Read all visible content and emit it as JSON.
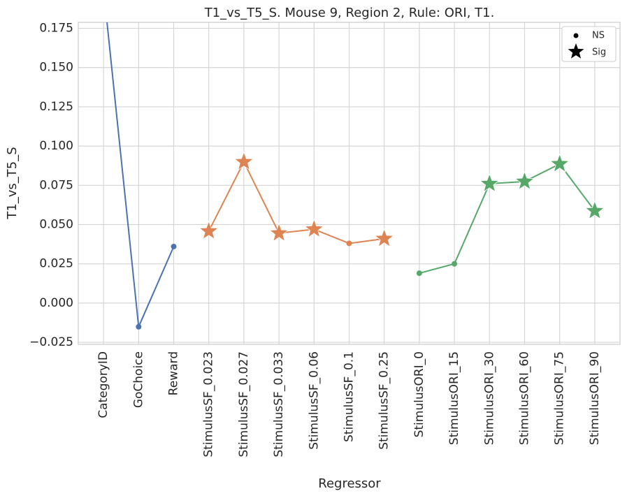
{
  "chart_data": {
    "type": "line",
    "title": "T1_vs_T5_S. Mouse 9, Region 2, Rule: ORI, T1.",
    "x_label": "Regressor",
    "y_label": "T1_vs_T5_S",
    "categories": [
      "CategoryID",
      "GoChoice",
      "Reward",
      "StimulusSF_0.023",
      "StimulusSF_0.027",
      "StimulusSF_0.033",
      "StimulusSF_0.06",
      "StimulusSF_0.1",
      "StimulusSF_0.25",
      "StimulusORI_0",
      "StimulusORI_15",
      "StimulusORI_30",
      "StimulusORI_60",
      "StimulusORI_75",
      "StimulusORI_90"
    ],
    "series": [
      {
        "color": "#4c72b0",
        "values": [
          0.2,
          -0.0151,
          0.036,
          null,
          null,
          null,
          null,
          null,
          null,
          null,
          null,
          null,
          null,
          null,
          null
        ],
        "significant": [
          false,
          false,
          false,
          null,
          null,
          null,
          null,
          null,
          null,
          null,
          null,
          null,
          null,
          null,
          null
        ]
      },
      {
        "color": "#dd8452",
        "values": [
          null,
          null,
          null,
          0.0458,
          0.0899,
          0.0445,
          0.047,
          0.038,
          0.041,
          null,
          null,
          null,
          null,
          null,
          null
        ],
        "significant": [
          null,
          null,
          null,
          true,
          true,
          true,
          true,
          false,
          true,
          null,
          null,
          null,
          null,
          null,
          null
        ]
      },
      {
        "color": "#55a868",
        "values": [
          null,
          null,
          null,
          null,
          null,
          null,
          null,
          null,
          null,
          0.019,
          0.025,
          0.076,
          0.0774,
          0.0886,
          0.0587
        ],
        "significant": [
          null,
          null,
          null,
          null,
          null,
          null,
          null,
          null,
          null,
          false,
          false,
          true,
          true,
          true,
          true
        ]
      }
    ],
    "legend": {
      "entries": [
        "NS",
        "Sig"
      ],
      "location": "upper right"
    },
    "ylim": [
      -0.0263,
      0.1788
    ],
    "yticks": [
      {
        "value": -0.025,
        "label": "−0.025"
      },
      {
        "value": 0,
        "label": "0.000"
      },
      {
        "value": 0.025,
        "label": "0.025"
      },
      {
        "value": 0.05,
        "label": "0.050"
      },
      {
        "value": 0.075,
        "label": "0.075"
      },
      {
        "value": 0.1,
        "label": "0.100"
      },
      {
        "value": 0.125,
        "label": "0.125"
      },
      {
        "value": 0.15,
        "label": "0.150"
      },
      {
        "value": 0.175,
        "label": "0.175"
      }
    ],
    "grid": true
  }
}
